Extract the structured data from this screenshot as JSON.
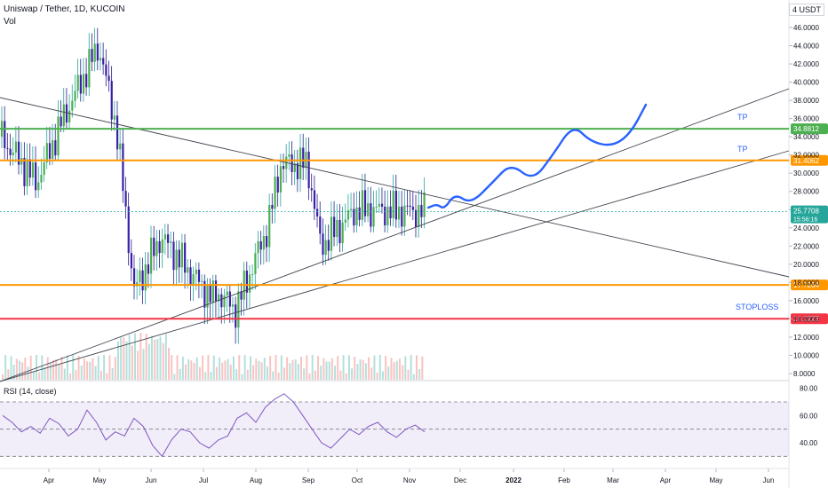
{
  "header": {
    "title": "Uniswap / Tether, 1D, KUCOIN",
    "volume_label": "Vol",
    "currency": "USDT",
    "currency_prefix": "4"
  },
  "rsi": {
    "title": "RSI (14, close)",
    "ticks": [
      "80.00",
      "60.00",
      "40.00"
    ]
  },
  "price_axis": {
    "ticks": [
      "46.0000",
      "44.0000",
      "42.0000",
      "40.0000",
      "38.0000",
      "36.0000",
      "34.0000",
      "32.0000",
      "30.0000",
      "28.0000",
      "26.0000",
      "24.0000",
      "22.0000",
      "20.0000",
      "18.0000",
      "16.0000",
      "14.0000",
      "12.0000",
      "10.0000",
      "8.0000"
    ]
  },
  "time_axis": {
    "labels": [
      "Apr",
      "May",
      "Jun",
      "Jul",
      "Aug",
      "Sep",
      "Oct",
      "Nov",
      "Dec",
      "2022",
      "Feb",
      "Mar",
      "Apr",
      "May",
      "Jun"
    ]
  },
  "levels": [
    {
      "label": "34.8812",
      "color": "#4caf50",
      "annotation": "TP"
    },
    {
      "label": "31.4062",
      "color": "#ff9800",
      "annotation": "TP"
    },
    {
      "label": "17.7264",
      "color": "#ff9800",
      "annotation": ""
    },
    {
      "label": "14.0223",
      "color": "#f23645",
      "annotation": "STOPLOSS"
    }
  ],
  "current_price": {
    "label": "25.7708",
    "countdown": "15:56:16",
    "color": "#26a69a"
  },
  "chart_data": {
    "type": "candlestick",
    "title": "Uniswap / Tether, 1D, KUCOIN",
    "ylim": [
      8,
      46
    ],
    "x_range": [
      "Mar",
      "Jun"
    ],
    "horizontal_levels": [
      34.8812,
      31.4062,
      17.7264,
      14.0223
    ],
    "level_annotations": [
      "TP",
      "TP",
      "",
      "STOPLOSS"
    ],
    "price_path": [
      {
        "month": "Mar",
        "price": 34
      },
      {
        "month": "Apr",
        "price": 29
      },
      {
        "month": "Apr",
        "price": 36
      },
      {
        "month": "May",
        "price": 44
      },
      {
        "month": "May",
        "price": 35
      },
      {
        "month": "May",
        "price": 17
      },
      {
        "month": "Jun",
        "price": 23
      },
      {
        "month": "Jun",
        "price": 16
      },
      {
        "month": "Jul",
        "price": 19
      },
      {
        "month": "Jul",
        "price": 15
      },
      {
        "month": "Aug",
        "price": 24
      },
      {
        "month": "Aug",
        "price": 31
      },
      {
        "month": "Sep",
        "price": 31
      },
      {
        "month": "Sep",
        "price": 22
      },
      {
        "month": "Oct",
        "price": 26
      },
      {
        "month": "Nov",
        "price": 25.77
      }
    ],
    "projection": [
      {
        "month": "Nov",
        "price": 26
      },
      {
        "month": "Dec",
        "price": 28
      },
      {
        "month": "Jan",
        "price": 31
      },
      {
        "month": "Feb",
        "price": 35
      },
      {
        "month": "Mar",
        "price": 33
      },
      {
        "month": "Mar",
        "price": 37
      }
    ],
    "rsi_series": [
      60,
      55,
      48,
      52,
      47,
      58,
      54,
      45,
      50,
      64,
      55,
      42,
      48,
      45,
      58,
      52,
      38,
      30,
      42,
      50,
      48,
      40,
      36,
      42,
      45,
      58,
      62,
      55,
      66,
      72,
      76,
      70,
      60,
      50,
      40,
      36,
      43,
      50,
      46,
      52,
      55,
      48,
      44,
      50,
      53,
      48
    ]
  }
}
